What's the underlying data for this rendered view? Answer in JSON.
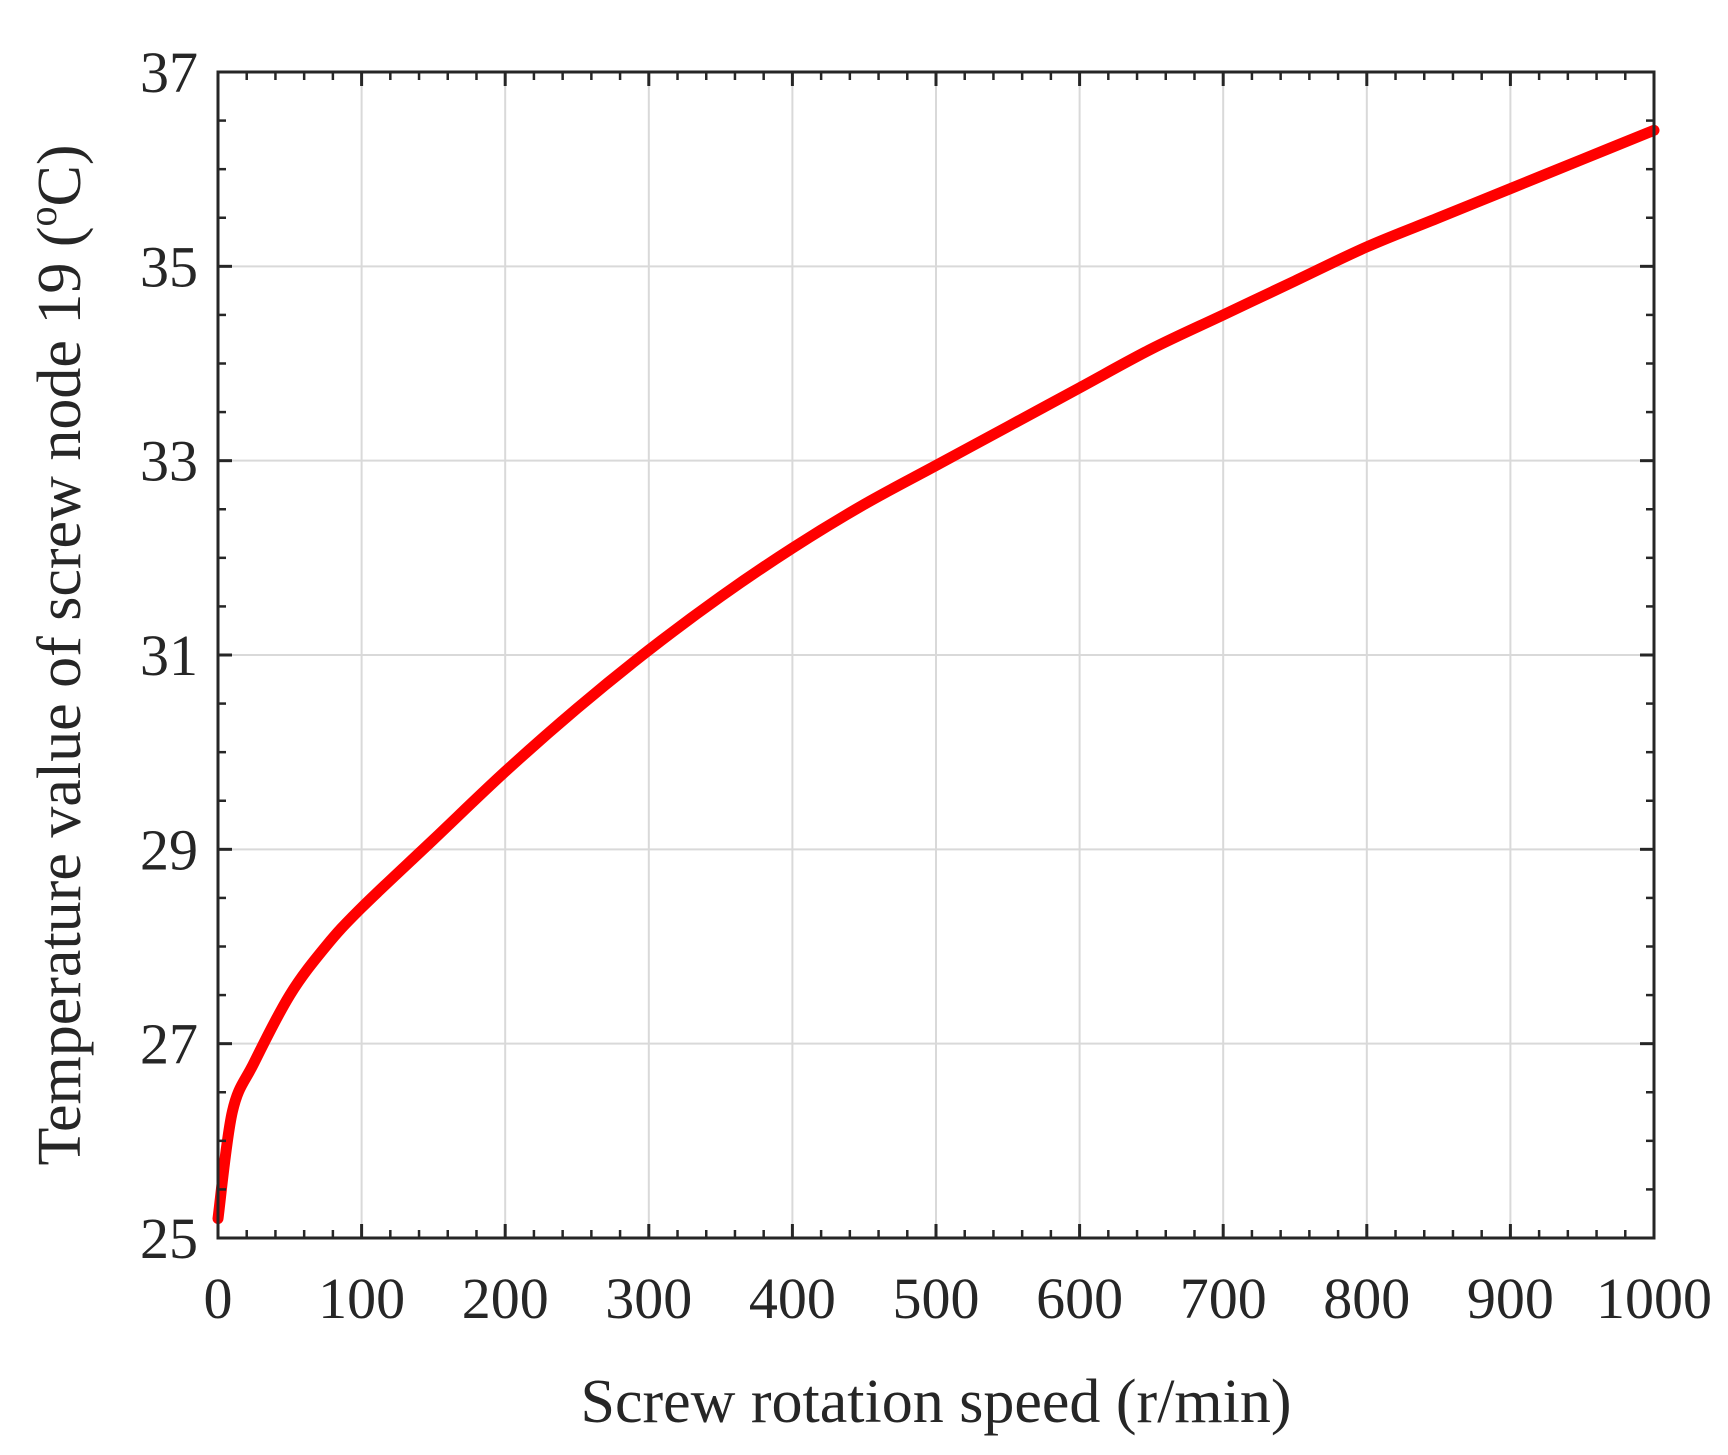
{
  "chart_data": {
    "type": "line",
    "title": "",
    "xlabel": "Screw rotation speed (r/min)",
    "ylabel_main": "Temperature value of screw node 19 (",
    "ylabel_sup": "o",
    "ylabel_unit": "C)",
    "xlim": [
      0,
      1000
    ],
    "ylim": [
      25,
      37
    ],
    "xticks": [
      0,
      100,
      200,
      300,
      400,
      500,
      600,
      700,
      800,
      900,
      1000
    ],
    "xtick_labels": [
      "0",
      "100",
      "200",
      "300",
      "400",
      "500",
      "600",
      "700",
      "800",
      "900",
      "1000"
    ],
    "yticks": [
      25,
      27,
      29,
      31,
      33,
      35,
      37
    ],
    "ytick_labels": [
      "25",
      "27",
      "29",
      "31",
      "33",
      "35",
      "37"
    ],
    "x_minor_step": 20,
    "y_minor_step": 0.5,
    "grid": true,
    "series": [
      {
        "color": "#ff0000",
        "x": [
          0,
          10,
          25,
          50,
          75,
          100,
          150,
          200,
          250,
          300,
          350,
          400,
          450,
          500,
          550,
          600,
          650,
          700,
          750,
          800,
          850,
          900,
          950,
          1000
        ],
        "y": [
          25.2,
          26.3,
          26.8,
          27.5,
          28.0,
          28.4,
          29.1,
          29.8,
          30.45,
          31.05,
          31.6,
          32.1,
          32.55,
          32.95,
          33.35,
          33.75,
          34.15,
          34.5,
          34.85,
          35.2,
          35.5,
          35.8,
          36.1,
          36.4
        ]
      }
    ]
  }
}
